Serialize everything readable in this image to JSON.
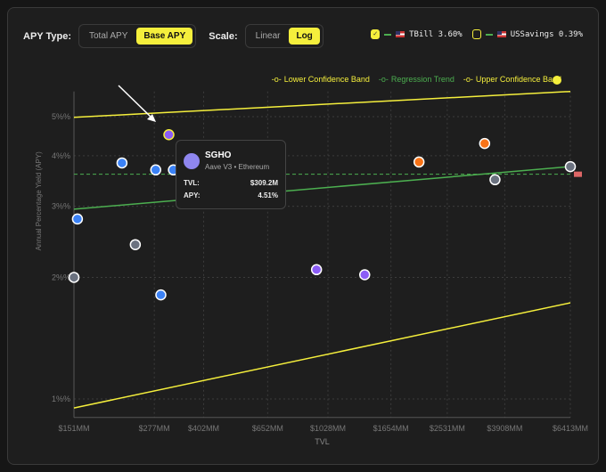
{
  "controls": {
    "apy_type_label": "APY Type:",
    "apy_options": [
      "Total APY",
      "Base APY"
    ],
    "apy_selected": "Base APY",
    "scale_label": "Scale:",
    "scale_options": [
      "Linear",
      "Log"
    ],
    "scale_selected": "Log"
  },
  "benchmarks": [
    {
      "label": "TBill 3.60%",
      "checked": true,
      "value": 3.6
    },
    {
      "label": "USSavings 0.39%",
      "checked": false,
      "value": 0.39
    }
  ],
  "tooltip": {
    "name": "SGHO",
    "subtitle": "Aave V3 • Ethereum",
    "tvl_label": "TVL:",
    "tvl_value": "$309.2M",
    "apy_label": "APY:",
    "apy_value": "4.51%"
  },
  "colors": {
    "yellow": "#f5ef3c",
    "green": "#4caf50",
    "blue": "#3b82f6",
    "purple": "#8b5cf6",
    "gray": "#6b7280",
    "orange": "#f97316"
  },
  "chart_data": {
    "type": "scatter",
    "xlabel": "TVL",
    "ylabel": "Annual Percentage Yield (APY)",
    "xscale": "log",
    "yscale": "log",
    "xlim": [
      151,
      6413
    ],
    "ylim": [
      0.9,
      5.77
    ],
    "xticks": [
      151,
      277,
      402,
      652,
      1028,
      1654,
      2531,
      3908,
      6413
    ],
    "xtick_labels": [
      "$151MM",
      "$277MM",
      "$402MM",
      "$652MM",
      "$1028MM",
      "$1654MM",
      "$2531MM",
      "$3908MM",
      "$6413MM"
    ],
    "yticks": [
      1,
      2,
      3,
      4,
      5
    ],
    "ytick_labels": [
      "1%%",
      "2%%",
      "3%%",
      "4%%",
      "5%%"
    ],
    "legend": [
      "Lower Confidence Band",
      "Regression Trend",
      "Upper Confidence Band"
    ],
    "legend_placement": "top-right",
    "points": [
      {
        "tvl": 151,
        "apy": 2.0,
        "color": "gray"
      },
      {
        "tvl": 155,
        "apy": 2.79,
        "color": "blue"
      },
      {
        "tvl": 217,
        "apy": 3.84,
        "color": "blue"
      },
      {
        "tvl": 240,
        "apy": 2.41,
        "color": "gray"
      },
      {
        "tvl": 280,
        "apy": 3.69,
        "color": "blue"
      },
      {
        "tvl": 291,
        "apy": 1.81,
        "color": "blue"
      },
      {
        "tvl": 309.2,
        "apy": 4.51,
        "color": "purple",
        "selected": true
      },
      {
        "tvl": 320,
        "apy": 3.69,
        "color": "blue"
      },
      {
        "tvl": 943,
        "apy": 2.09,
        "color": "purple"
      },
      {
        "tvl": 1357,
        "apy": 2.03,
        "color": "purple"
      },
      {
        "tvl": 2045,
        "apy": 3.86,
        "color": "orange"
      },
      {
        "tvl": 3357,
        "apy": 4.29,
        "color": "orange"
      },
      {
        "tvl": 3630,
        "apy": 3.49,
        "color": "gray"
      },
      {
        "tvl": 6413,
        "apy": 3.76,
        "color": "gray"
      }
    ],
    "lines": {
      "upper": [
        [
          151,
          4.98
        ],
        [
          6413,
          5.77
        ]
      ],
      "regression": [
        [
          151,
          2.95
        ],
        [
          6413,
          3.76
        ]
      ],
      "lower": [
        [
          151,
          0.95
        ],
        [
          6413,
          1.73
        ]
      ],
      "tbill": 3.6
    }
  }
}
